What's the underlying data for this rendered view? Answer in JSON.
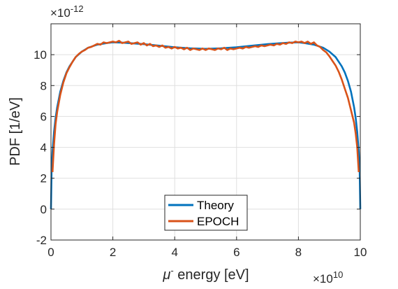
{
  "chart_data": {
    "type": "line",
    "xlabel_symbol": "μ",
    "xlabel_superscript": "-",
    "xlabel_text": " energy [eV]",
    "ylabel": "PDF [1/eV]",
    "x_exponent_base": "×10",
    "x_exponent_power": "10",
    "y_exponent_base": "×10",
    "y_exponent_power": "-12",
    "xlim": [
      0,
      10
    ],
    "ylim": [
      -2,
      12
    ],
    "x_ticks": [
      "0",
      "2",
      "4",
      "6",
      "8",
      "10"
    ],
    "y_ticks": [
      "-2",
      "0",
      "2",
      "4",
      "6",
      "8",
      "10"
    ],
    "grid": true,
    "legend_position": "bottom-center",
    "series": [
      {
        "name": "Theory",
        "color": "#0072BD",
        "x": [
          0,
          0.02,
          0.05,
          0.1,
          0.15,
          0.2,
          0.3,
          0.4,
          0.5,
          0.6,
          0.8,
          1.0,
          1.2,
          1.5,
          1.8,
          2.0,
          2.3,
          2.6,
          3.0,
          3.5,
          4.0,
          4.5,
          5.0,
          5.5,
          6.0,
          6.5,
          7.0,
          7.4,
          7.7,
          8.0,
          8.2,
          8.5,
          8.8,
          9.0,
          9.2,
          9.4,
          9.5,
          9.6,
          9.7,
          9.8,
          9.85,
          9.9,
          9.95,
          9.98,
          10.0
        ],
        "y": [
          0.0,
          2.5,
          3.7,
          5.0,
          5.9,
          6.6,
          7.6,
          8.3,
          8.85,
          9.25,
          9.85,
          10.2,
          10.45,
          10.65,
          10.75,
          10.8,
          10.78,
          10.74,
          10.68,
          10.58,
          10.48,
          10.41,
          10.38,
          10.41,
          10.48,
          10.58,
          10.68,
          10.74,
          10.78,
          10.8,
          10.75,
          10.65,
          10.45,
          10.2,
          9.85,
          9.25,
          8.85,
          8.3,
          7.6,
          6.6,
          5.9,
          5.0,
          3.7,
          2.5,
          0.0
        ]
      },
      {
        "name": "EPOCH",
        "color": "#D95319",
        "x": [
          0.05,
          0.1,
          0.15,
          0.2,
          0.3,
          0.4,
          0.5,
          0.6,
          0.7,
          0.8,
          0.9,
          1.0,
          1.1,
          1.2,
          1.3,
          1.4,
          1.5,
          1.6,
          1.7,
          1.8,
          1.9,
          2.0,
          2.1,
          2.2,
          2.3,
          2.4,
          2.5,
          2.6,
          2.7,
          2.8,
          2.9,
          3.0,
          3.1,
          3.2,
          3.3,
          3.4,
          3.5,
          3.6,
          3.7,
          3.8,
          3.9,
          4.0,
          4.1,
          4.2,
          4.3,
          4.4,
          4.5,
          4.6,
          4.7,
          4.8,
          4.9,
          5.0,
          5.1,
          5.2,
          5.3,
          5.4,
          5.5,
          5.6,
          5.7,
          5.8,
          5.9,
          6.0,
          6.1,
          6.2,
          6.3,
          6.4,
          6.5,
          6.6,
          6.7,
          6.8,
          6.9,
          7.0,
          7.1,
          7.2,
          7.3,
          7.4,
          7.5,
          7.6,
          7.7,
          7.8,
          7.9,
          8.0,
          8.1,
          8.2,
          8.3,
          8.4,
          8.5,
          8.6,
          8.7,
          8.8,
          8.9,
          9.0,
          9.1,
          9.2,
          9.3,
          9.4,
          9.5,
          9.6,
          9.7,
          9.8,
          9.85,
          9.9,
          9.95
        ],
        "y": [
          2.4,
          4.2,
          5.5,
          6.3,
          7.4,
          8.2,
          8.8,
          9.2,
          9.55,
          9.85,
          10.05,
          10.2,
          10.3,
          10.45,
          10.5,
          10.6,
          10.7,
          10.65,
          10.8,
          10.75,
          10.8,
          10.85,
          10.8,
          10.9,
          10.75,
          10.8,
          10.85,
          10.7,
          10.75,
          10.8,
          10.65,
          10.75,
          10.6,
          10.7,
          10.55,
          10.6,
          10.5,
          10.6,
          10.45,
          10.5,
          10.4,
          10.5,
          10.4,
          10.45,
          10.35,
          10.45,
          10.3,
          10.4,
          10.35,
          10.3,
          10.4,
          10.3,
          10.4,
          10.35,
          10.3,
          10.4,
          10.35,
          10.45,
          10.3,
          10.4,
          10.35,
          10.4,
          10.45,
          10.4,
          10.5,
          10.45,
          10.5,
          10.55,
          10.5,
          10.6,
          10.55,
          10.6,
          10.65,
          10.6,
          10.7,
          10.65,
          10.75,
          10.7,
          10.8,
          10.75,
          10.85,
          10.8,
          10.85,
          10.75,
          10.85,
          10.7,
          10.8,
          10.6,
          10.5,
          10.3,
          10.15,
          9.9,
          9.6,
          9.3,
          8.9,
          8.4,
          7.8,
          7.2,
          6.4,
          5.6,
          4.9,
          4.0,
          2.4
        ]
      }
    ]
  }
}
